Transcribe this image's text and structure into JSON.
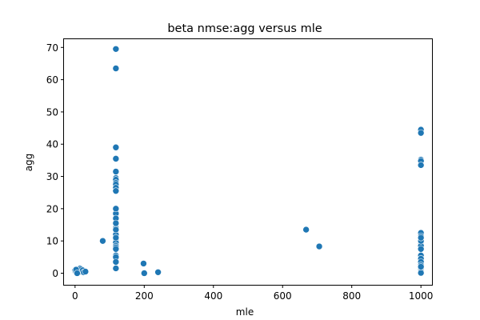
{
  "chart_data": {
    "type": "scatter",
    "title": "beta nmse:agg versus mle",
    "xlabel": "mle",
    "ylabel": "agg",
    "xlim": [
      -32,
      1032
    ],
    "ylim": [
      -3.6,
      72.8
    ],
    "xticks": [
      0,
      200,
      400,
      600,
      800,
      1000
    ],
    "yticks": [
      0,
      10,
      20,
      30,
      40,
      50,
      60,
      70
    ],
    "grid": false,
    "legend": "none",
    "color": "#1f77b4",
    "x": [
      0,
      2,
      5,
      8,
      10,
      12,
      15,
      18,
      20,
      22,
      25,
      30,
      3,
      6,
      80,
      118,
      118,
      118,
      118,
      118,
      118,
      118,
      118,
      118,
      118,
      118,
      118,
      118,
      118,
      118,
      118,
      118,
      118,
      118,
      118,
      118,
      118,
      118,
      118,
      118,
      118,
      118,
      118,
      198,
      200,
      240,
      668,
      706,
      1000,
      1000,
      1000,
      1000,
      1000,
      1000,
      1000,
      1000,
      1000,
      1000,
      1000,
      1000,
      1000,
      1000,
      1000,
      1000,
      1000,
      1000,
      1000,
      1000,
      1000
    ],
    "y": [
      0.8,
      0.5,
      0.2,
      0.3,
      1.0,
      0.6,
      1.5,
      1.2,
      0.4,
      0.9,
      0.3,
      0.5,
      1.1,
      0.0,
      10.0,
      69.5,
      63.5,
      39.0,
      35.5,
      31.5,
      29.5,
      29.0,
      28.0,
      27.5,
      26.5,
      25.5,
      18.5,
      17.0,
      14.0,
      12.0,
      10.5,
      9.5,
      8.5,
      8.0,
      7.5,
      5.5,
      5.0,
      3.5,
      1.5,
      11.0,
      13.5,
      15.5,
      20.0,
      3.0,
      0.0,
      0.3,
      13.5,
      8.3,
      44.5,
      43.5,
      35.2,
      34.8,
      33.5,
      12.5,
      11.5,
      10.5,
      9.5,
      8.5,
      7.5,
      5.5,
      4.5,
      3.5,
      2.5,
      1.5,
      0.5,
      0.1,
      10.0,
      11.0,
      2.0
    ]
  }
}
